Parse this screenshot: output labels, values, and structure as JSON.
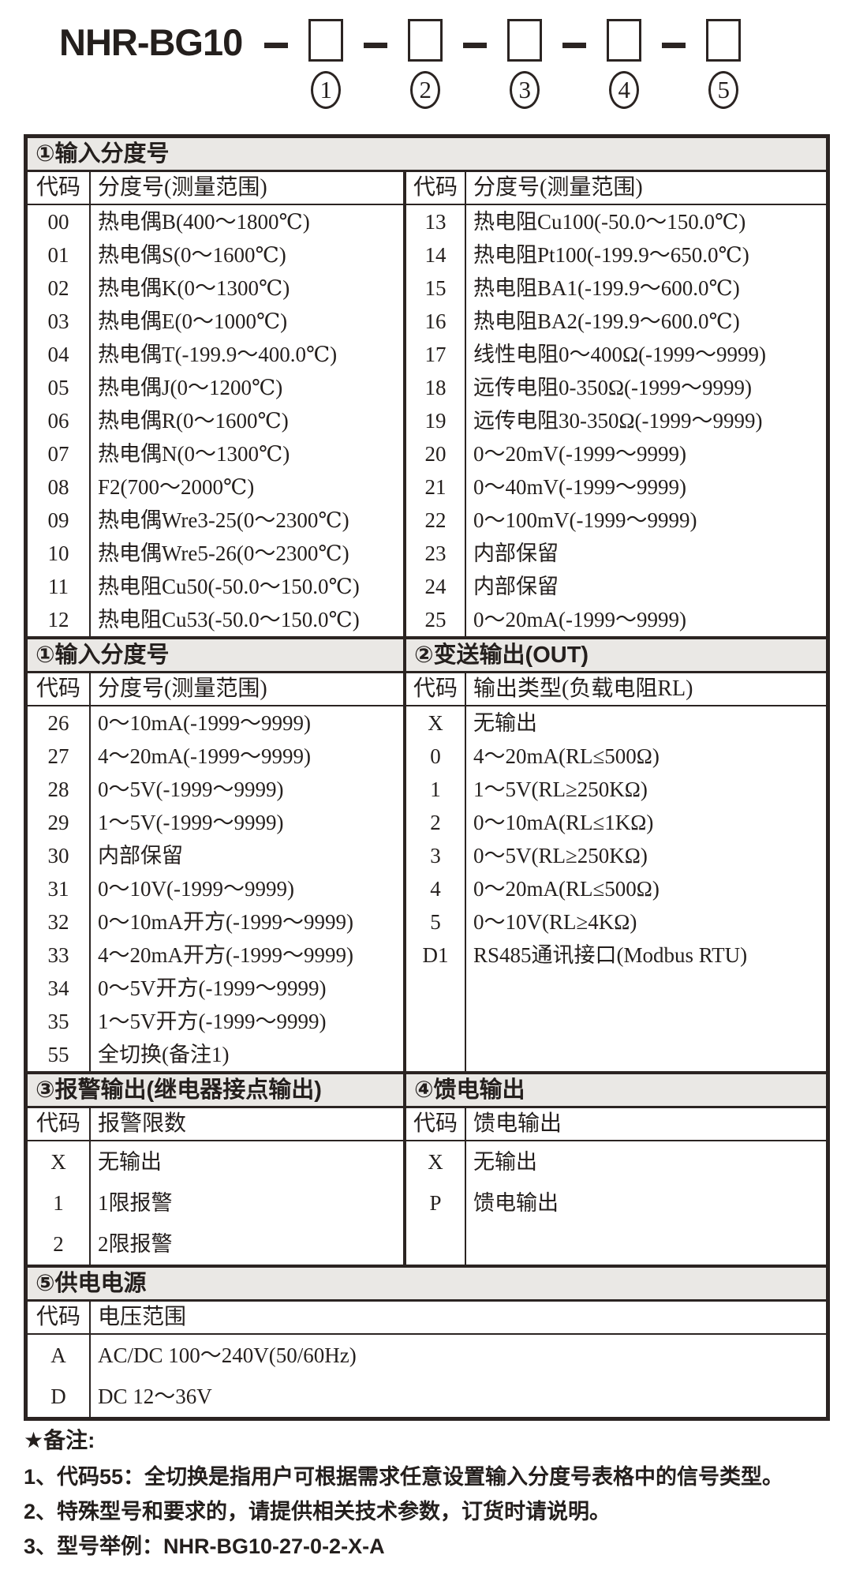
{
  "model_header": {
    "model": "NHR-BG10",
    "position_labels": [
      "1",
      "2",
      "3",
      "4",
      "5"
    ]
  },
  "table": {
    "section1": {
      "title": "①输入分度号",
      "code_header": "代码",
      "desc_header": "分度号(测量范围)",
      "left_rows": [
        {
          "code": "00",
          "desc": "热电偶B(400～1800℃)"
        },
        {
          "code": "01",
          "desc": "热电偶S(0～1600℃)"
        },
        {
          "code": "02",
          "desc": "热电偶K(0～1300℃)"
        },
        {
          "code": "03",
          "desc": "热电偶E(0～1000℃)"
        },
        {
          "code": "04",
          "desc": "热电偶T(-199.9～400.0℃)"
        },
        {
          "code": "05",
          "desc": "热电偶J(0～1200℃)"
        },
        {
          "code": "06",
          "desc": "热电偶R(0～1600℃)"
        },
        {
          "code": "07",
          "desc": "热电偶N(0～1300℃)"
        },
        {
          "code": "08",
          "desc": "F2(700～2000℃)"
        },
        {
          "code": "09",
          "desc": "热电偶Wre3-25(0～2300℃)"
        },
        {
          "code": "10",
          "desc": "热电偶Wre5-26(0～2300℃)"
        },
        {
          "code": "11",
          "desc": "热电阻Cu50(-50.0～150.0℃)"
        },
        {
          "code": "12",
          "desc": "热电阻Cu53(-50.0～150.0℃)"
        }
      ],
      "right_rows": [
        {
          "code": "13",
          "desc": "热电阻Cu100(-50.0～150.0℃)"
        },
        {
          "code": "14",
          "desc": "热电阻Pt100(-199.9～650.0℃)"
        },
        {
          "code": "15",
          "desc": "热电阻BA1(-199.9～600.0℃)"
        },
        {
          "code": "16",
          "desc": "热电阻BA2(-199.9～600.0℃)"
        },
        {
          "code": "17",
          "desc": "线性电阻0～400Ω(-1999～9999)"
        },
        {
          "code": "18",
          "desc": "远传电阻0-350Ω(-1999～9999)"
        },
        {
          "code": "19",
          "desc": "远传电阻30-350Ω(-1999～9999)"
        },
        {
          "code": "20",
          "desc": "0～20mV(-1999～9999)"
        },
        {
          "code": "21",
          "desc": "0～40mV(-1999～9999)"
        },
        {
          "code": "22",
          "desc": "0～100mV(-1999～9999)"
        },
        {
          "code": "23",
          "desc": "内部保留"
        },
        {
          "code": "24",
          "desc": "内部保留"
        },
        {
          "code": "25",
          "desc": "0～20mA(-1999～9999)"
        }
      ]
    },
    "section2": {
      "left_title": "①输入分度号",
      "right_title": "②变送输出(OUT)",
      "code_header": "代码",
      "left_desc_header": "分度号(测量范围)",
      "right_desc_header": "输出类型(负载电阻RL)",
      "left_rows": [
        {
          "code": "26",
          "desc": "0～10mA(-1999～9999)"
        },
        {
          "code": "27",
          "desc": "4～20mA(-1999～9999)"
        },
        {
          "code": "28",
          "desc": "0～5V(-1999～9999)"
        },
        {
          "code": "29",
          "desc": "1～5V(-1999～9999)"
        },
        {
          "code": "30",
          "desc": "内部保留"
        },
        {
          "code": "31",
          "desc": "0～10V(-1999～9999)"
        },
        {
          "code": "32",
          "desc": "0～10mA开方(-1999～9999)"
        },
        {
          "code": "33",
          "desc": "4～20mA开方(-1999～9999)"
        },
        {
          "code": "34",
          "desc": "0～5V开方(-1999～9999)"
        },
        {
          "code": "35",
          "desc": "1～5V开方(-1999～9999)"
        },
        {
          "code": "55",
          "desc": "全切换(备注1)"
        }
      ],
      "right_rows": [
        {
          "code": "X",
          "desc": "无输出"
        },
        {
          "code": "0",
          "desc": "4～20mA(RL≤500Ω)"
        },
        {
          "code": "1",
          "desc": "1～5V(RL≥250KΩ)"
        },
        {
          "code": "2",
          "desc": "0～10mA(RL≤1KΩ)"
        },
        {
          "code": "3",
          "desc": "0～5V(RL≥250KΩ)"
        },
        {
          "code": "4",
          "desc": "0～20mA(RL≤500Ω)"
        },
        {
          "code": "5",
          "desc": "0～10V(RL≥4KΩ)"
        },
        {
          "code": "D1",
          "desc": "RS485通讯接口(Modbus RTU)"
        }
      ]
    },
    "section3": {
      "left_title": "③报警输出(继电器接点输出)",
      "right_title": "④馈电输出",
      "code_header": "代码",
      "left_desc_header": "报警限数",
      "right_desc_header": "馈电输出",
      "left_rows": [
        {
          "code": "X",
          "desc": "无输出"
        },
        {
          "code": "1",
          "desc": "1限报警"
        },
        {
          "code": "2",
          "desc": "2限报警"
        }
      ],
      "right_rows": [
        {
          "code": "X",
          "desc": "无输出"
        },
        {
          "code": "P",
          "desc": "馈电输出"
        }
      ]
    },
    "section5": {
      "title": "⑤供电电源",
      "code_header": "代码",
      "desc_header": "电压范围",
      "rows": [
        {
          "code": "A",
          "desc": "AC/DC 100～240V(50/60Hz)"
        },
        {
          "code": "D",
          "desc": "DC 12～36V"
        }
      ]
    }
  },
  "notes": {
    "title": "★备注:",
    "items": [
      "1、代码55：全切换是指用户可根据需求任意设置输入分度号表格中的信号类型。",
      "2、特殊型号和要求的，请提供相关技术参数，订货时请说明。",
      "3、型号举例：NHR-BG10-27-0-2-X-A"
    ]
  }
}
